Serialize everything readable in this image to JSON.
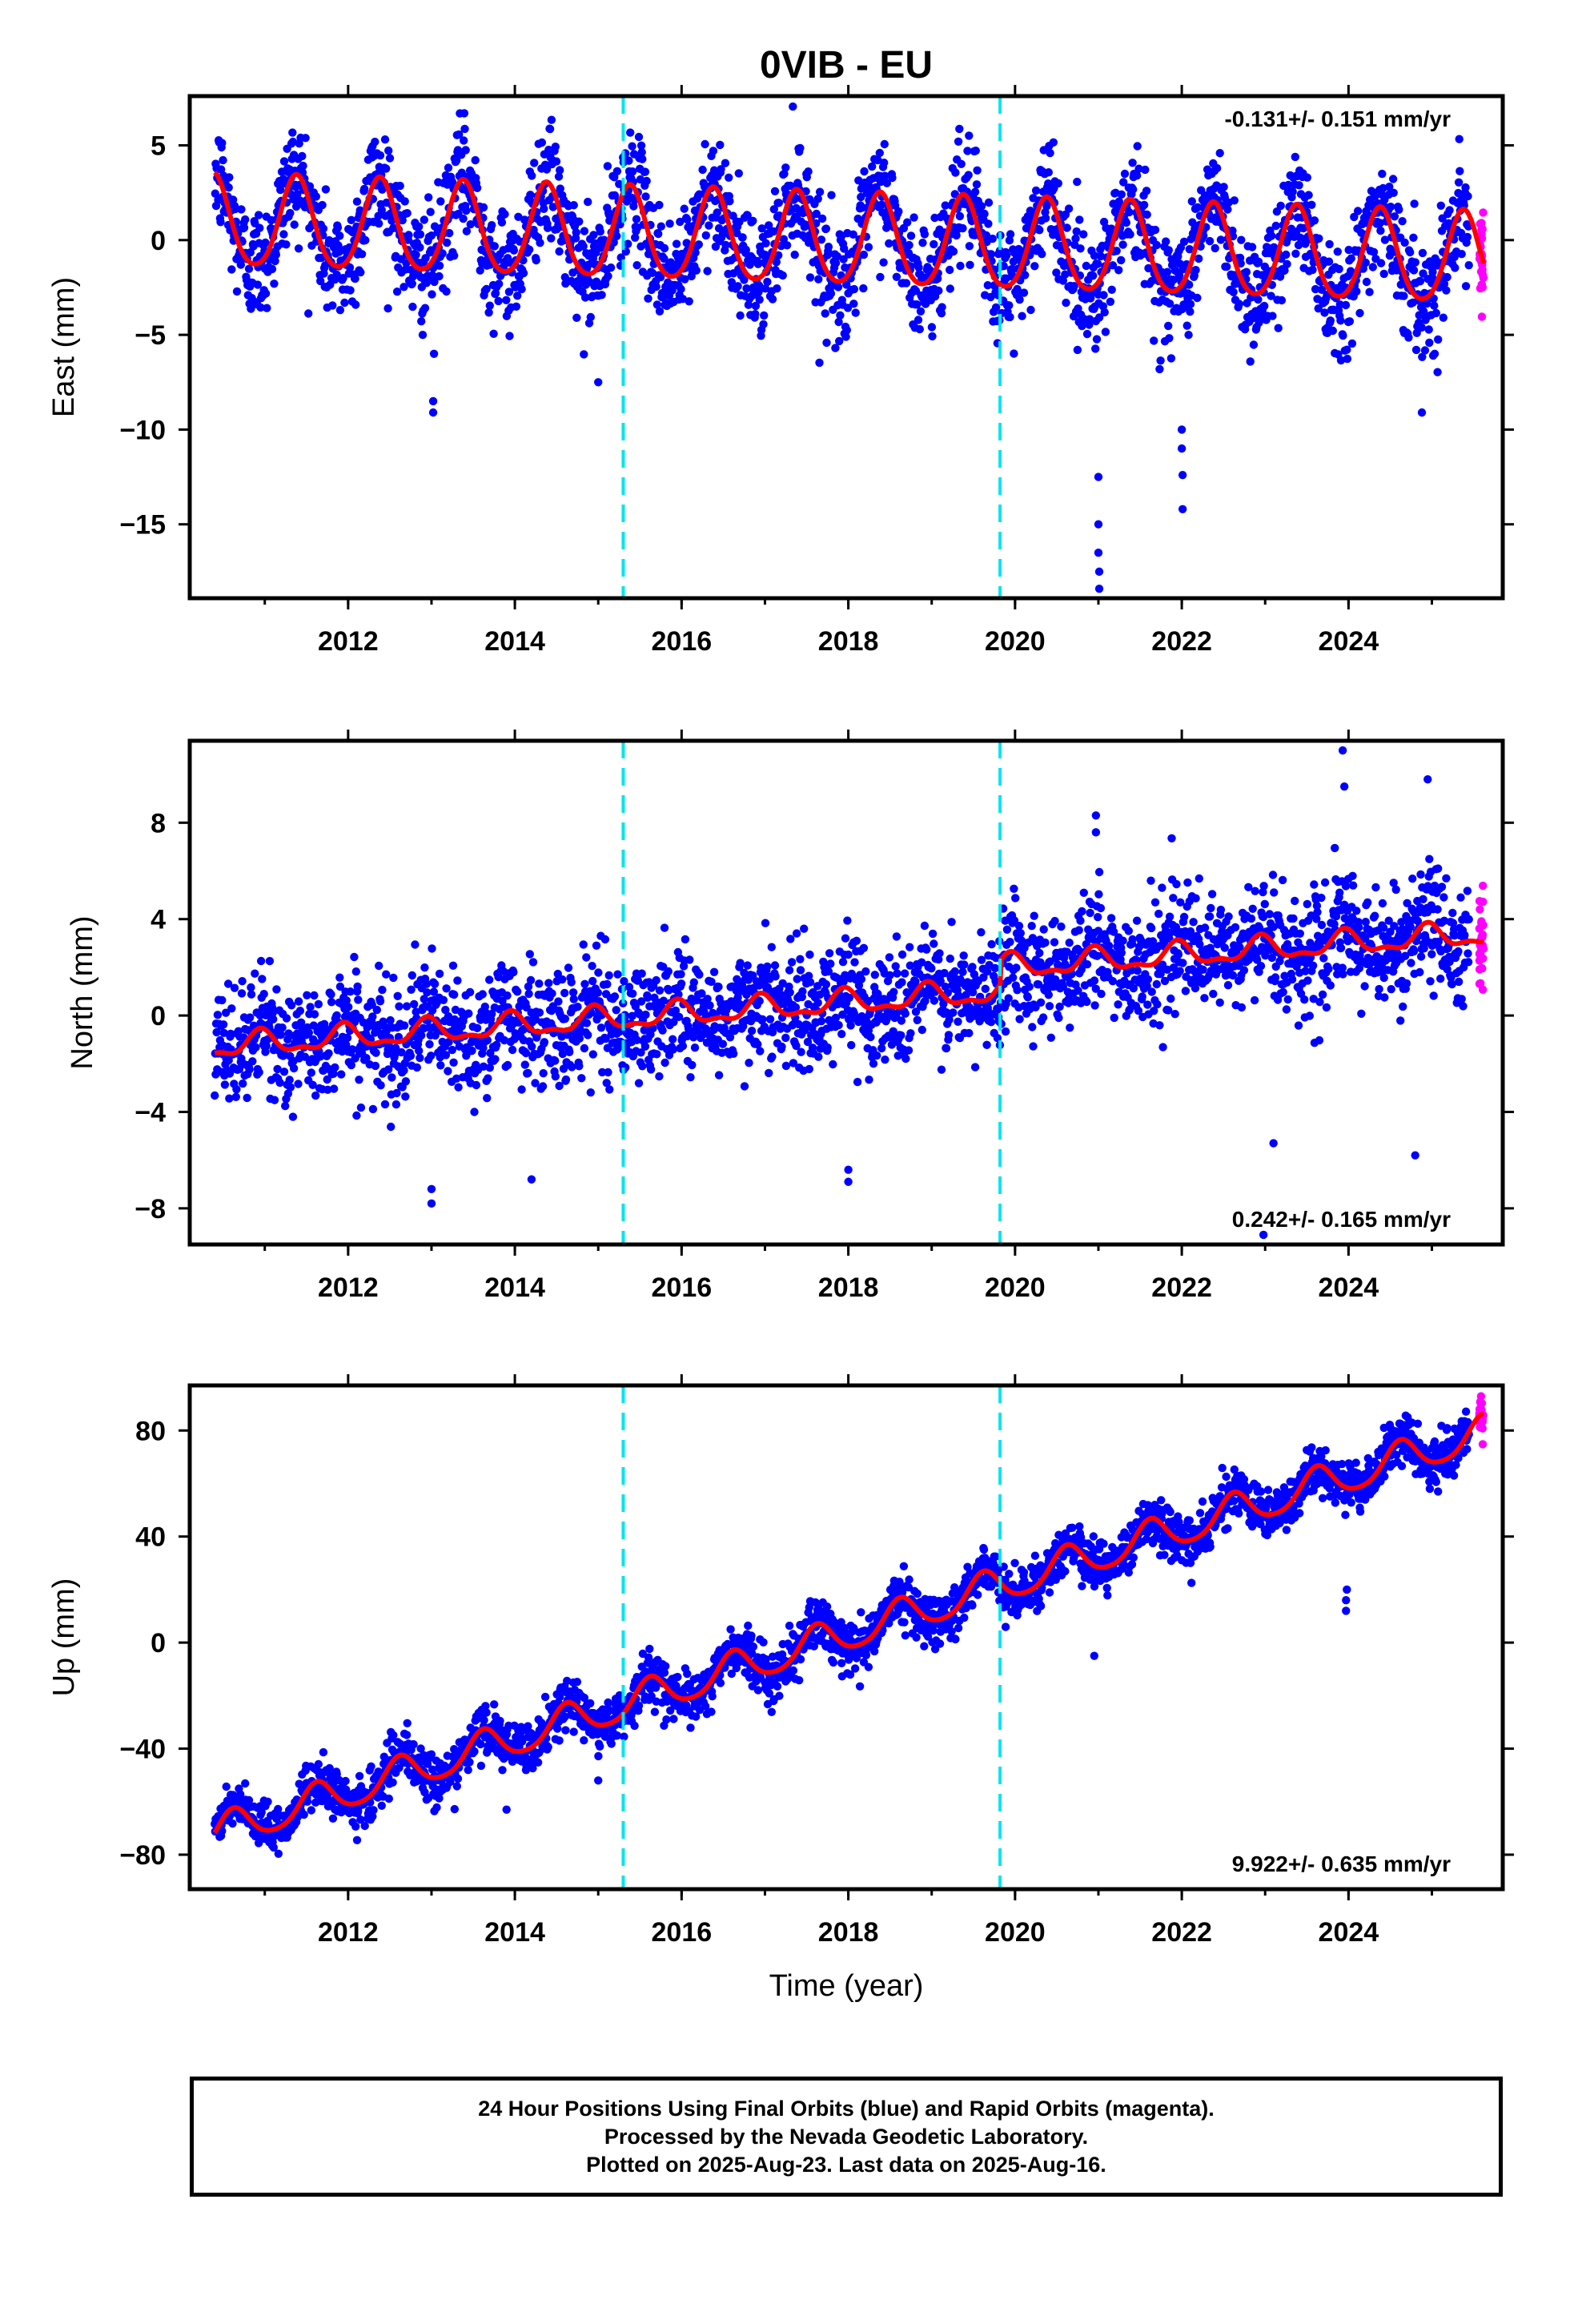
{
  "title": "0VIB - EU",
  "colors": {
    "final": "#0000ff",
    "rapid": "#ff00ff",
    "model": "#ff0000",
    "break": "#00e5ee",
    "frame": "#000000"
  },
  "xlabel": "Time (year)",
  "footer": {
    "line1": "24 Hour Positions Using Final Orbits (blue) and Rapid Orbits (magenta).",
    "line2": "Processed by the Nevada Geodetic Laboratory.",
    "line3": "Plotted on 2025-Aug-23. Last data on 2025-Aug-16."
  },
  "chart_data": [
    {
      "type": "scatter",
      "panel": "east",
      "ylabel": "East (mm)",
      "rate_text": "-0.131+/- 0.151 mm/yr",
      "rate_position": "top-right",
      "xlim": [
        2010.1,
        2025.85
      ],
      "ylim": [
        -18.9,
        7.6
      ],
      "xticks": [
        "2012",
        "2014",
        "2016",
        "2018",
        "2020",
        "2022",
        "2024"
      ],
      "yticks": [
        "5",
        "0",
        "−5",
        "−10",
        "−15"
      ],
      "ytick_values": [
        5,
        0,
        -5,
        -10,
        -15
      ],
      "data_start": 2010.4,
      "data_end": 2025.62,
      "rapid_start": 2025.45,
      "model": {
        "offset": 0.9,
        "rate": -0.131,
        "annual_amplitude": 2.4,
        "annual_peak": 0.38,
        "semiannual_amplitude": 0.3
      },
      "scatter_sigma": 1.5,
      "breaks": [
        2015.3,
        2019.82
      ],
      "outliers": [
        {
          "x": 2013.02,
          "y": -9.1
        },
        {
          "x": 2013.02,
          "y": -8.5
        },
        {
          "x": 2013.03,
          "y": -6.0
        },
        {
          "x": 2015.0,
          "y": -7.5
        },
        {
          "x": 2021.0,
          "y": -12.5
        },
        {
          "x": 2021.0,
          "y": -15.0
        },
        {
          "x": 2021.0,
          "y": -16.5
        },
        {
          "x": 2021.01,
          "y": -17.5
        },
        {
          "x": 2021.01,
          "y": -18.4
        },
        {
          "x": 2022.0,
          "y": -10.0
        },
        {
          "x": 2022.0,
          "y": -11.0
        },
        {
          "x": 2022.01,
          "y": -12.4
        },
        {
          "x": 2022.01,
          "y": -14.2
        },
        {
          "x": 2024.88,
          "y": -9.1
        }
      ]
    },
    {
      "type": "scatter",
      "panel": "north",
      "ylabel": "North (mm)",
      "rate_text": "0.242+/- 0.165 mm/yr",
      "rate_position": "bottom-right",
      "xlim": [
        2010.1,
        2025.85
      ],
      "ylim": [
        -9.5,
        11.4
      ],
      "xticks": [
        "2012",
        "2014",
        "2016",
        "2018",
        "2020",
        "2022",
        "2024"
      ],
      "yticks": [
        "8",
        "4",
        "0",
        "−4",
        "−8"
      ],
      "ytick_values": [
        8,
        4,
        0,
        -4,
        -8
      ],
      "data_start": 2010.4,
      "data_end": 2025.62,
      "rapid_start": 2025.45,
      "model": {
        "offset": -1.3,
        "rate": 0.242,
        "annual_amplitude": 0.45,
        "annual_peak": 0.95,
        "semiannual_amplitude": 0.2,
        "steps": [
          {
            "x": 2019.82,
            "dy": 1.0
          }
        ]
      },
      "scatter_sigma": 1.2,
      "breaks": [
        2015.3,
        2019.82
      ],
      "outliers": [
        {
          "x": 2013.0,
          "y": -7.8
        },
        {
          "x": 2013.0,
          "y": -7.2
        },
        {
          "x": 2018.0,
          "y": -6.9
        },
        {
          "x": 2018.0,
          "y": -6.4
        },
        {
          "x": 2014.2,
          "y": -6.8
        },
        {
          "x": 2020.97,
          "y": 8.3
        },
        {
          "x": 2020.97,
          "y": 7.6
        },
        {
          "x": 2023.93,
          "y": 11.0
        },
        {
          "x": 2023.95,
          "y": 9.5
        },
        {
          "x": 2024.95,
          "y": 9.8
        },
        {
          "x": 2023.1,
          "y": -5.3
        },
        {
          "x": 2024.8,
          "y": -5.8
        },
        {
          "x": 2022.98,
          "y": -9.1
        }
      ]
    },
    {
      "type": "scatter",
      "panel": "up",
      "ylabel": "Up (mm)",
      "rate_text": "9.922+/- 0.635 mm/yr",
      "rate_position": "bottom-right",
      "xlim": [
        2010.1,
        2025.85
      ],
      "ylim": [
        -93,
        97
      ],
      "xticks": [
        "2012",
        "2014",
        "2016",
        "2018",
        "2020",
        "2022",
        "2024"
      ],
      "yticks": [
        "80",
        "40",
        "0",
        "−40",
        "−80"
      ],
      "ytick_values": [
        80,
        40,
        0,
        -40,
        -80
      ],
      "data_start": 2010.4,
      "data_end": 2025.62,
      "rapid_start": 2025.45,
      "model": {
        "offset": -72,
        "rate": 9.922,
        "annual_amplitude": 6.5,
        "annual_peak": 0.62,
        "semiannual_amplitude": 1.0
      },
      "scatter_sigma": 4.5,
      "breaks": [
        2015.3,
        2019.82
      ],
      "outliers": [
        {
          "x": 2023.97,
          "y": 12.0
        },
        {
          "x": 2023.97,
          "y": 16.0
        },
        {
          "x": 2023.98,
          "y": 20.0
        },
        {
          "x": 2020.95,
          "y": -5.0
        },
        {
          "x": 2013.9,
          "y": -63.0
        },
        {
          "x": 2015.0,
          "y": -52.0
        }
      ]
    }
  ]
}
